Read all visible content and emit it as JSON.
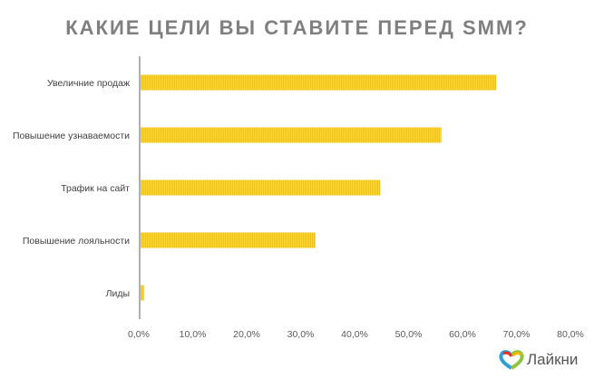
{
  "chart_data": {
    "type": "bar",
    "orientation": "horizontal",
    "title": "КАКИЕ ЦЕЛИ ВЫ СТАВИТЕ ПЕРЕД SMM?",
    "categories": [
      "Увеличние продаж",
      "Повышение узнаваемости",
      "Трафик на сайт",
      "Повышение лояльности",
      "Лиды"
    ],
    "values": [
      66.1,
      55.9,
      44.6,
      32.6,
      0.8
    ],
    "xlim": [
      0,
      80
    ],
    "xticks": [
      "0,0%",
      "10,0%",
      "20,0%",
      "30,0%",
      "40,0%",
      "50,0%",
      "60,0%",
      "70,0%",
      "80,0%"
    ],
    "grid": false,
    "bar_color": "#f5cc30"
  },
  "logo": {
    "text": "Лайкни"
  }
}
